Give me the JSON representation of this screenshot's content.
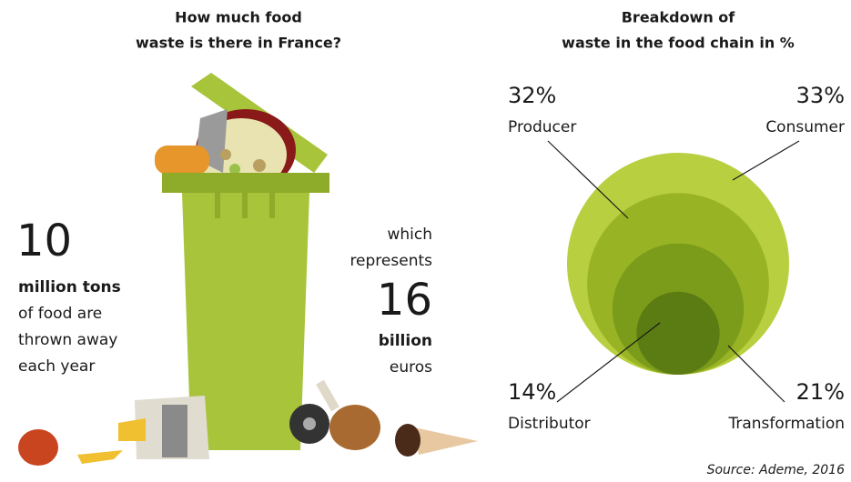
{
  "left": {
    "title_lines": [
      "How much food",
      "waste is there in France?"
    ],
    "tons": {
      "number": 10,
      "bold": "million tons",
      "lines": [
        "of food are",
        "thrown away",
        "each year"
      ]
    },
    "euros": {
      "intro": [
        "which",
        "represents"
      ],
      "number": 16,
      "bold": "billion",
      "unit": "euros"
    }
  },
  "chart_data": {
    "type": "nested-circles",
    "title_lines": [
      "Breakdown of",
      "waste in the food chain in %"
    ],
    "categories": [
      "Producer",
      "Consumer",
      "Distributor",
      "Transformation"
    ],
    "values": [
      32,
      33,
      14,
      21
    ],
    "value_labels": [
      "32%",
      "33%",
      "14%",
      "21%"
    ],
    "colors": [
      "#98b324",
      "#b8cf40",
      "#5b7c12",
      "#7b9b1b"
    ]
  },
  "source": "Source: Ademe, 2016"
}
